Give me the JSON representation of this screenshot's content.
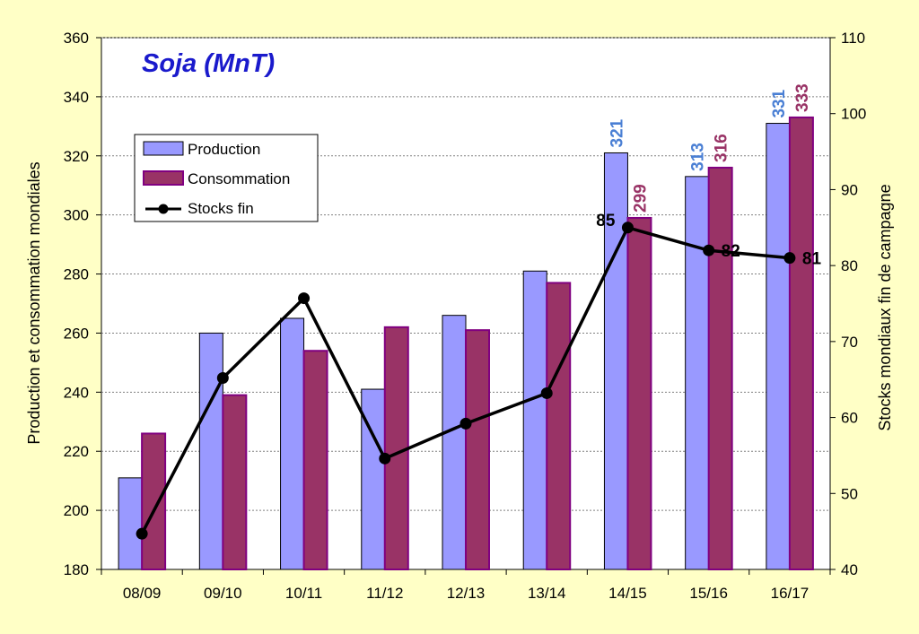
{
  "chart_data": {
    "type": "bar",
    "title": "Soja (MnT)",
    "categories": [
      "08/09",
      "09/10",
      "10/11",
      "11/12",
      "12/13",
      "13/14",
      "14/15",
      "15/16",
      "16/17"
    ],
    "series": [
      {
        "name": "Production",
        "type": "bar",
        "axis": "left",
        "color": "#9999ff",
        "values": [
          211,
          260,
          265,
          241,
          266,
          281,
          321,
          313,
          331
        ],
        "labels": [
          "",
          "",
          "",
          "",
          "",
          "",
          "321",
          "313",
          "331"
        ],
        "label_color": "#4a7fd4"
      },
      {
        "name": "Consommation",
        "type": "bar",
        "axis": "left",
        "color": "#993366",
        "values": [
          226,
          239,
          254,
          262,
          261,
          277,
          299,
          316,
          333
        ],
        "labels": [
          "",
          "",
          "",
          "",
          "",
          "",
          "299",
          "316",
          "333"
        ],
        "label_color": "#993366"
      },
      {
        "name": "Stocks fin",
        "type": "line",
        "axis": "right",
        "color": "#000000",
        "values": [
          44.7,
          65.2,
          75.7,
          54.6,
          59.2,
          63.2,
          85,
          82,
          81
        ],
        "labels": [
          "",
          "",
          "",
          "",
          "",
          "",
          "85",
          "82",
          "81"
        ],
        "label_color": "#000000"
      }
    ],
    "ylabel": "Production et consommation mondiales",
    "ylim": [
      180,
      360
    ],
    "yticks": [
      "180",
      "200",
      "220",
      "240",
      "260",
      "280",
      "300",
      "320",
      "340",
      "360"
    ],
    "y2label": "Stocks mondiaux fin de campagne",
    "y2lim": [
      40,
      110
    ],
    "y2ticks": [
      "40",
      "50",
      "60",
      "70",
      "80",
      "90",
      "100",
      "110"
    ],
    "grid": true,
    "legend_position": "top-left"
  }
}
